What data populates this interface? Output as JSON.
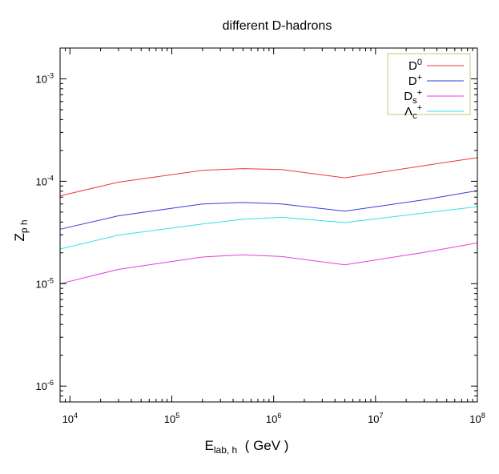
{
  "chart_data": {
    "type": "line",
    "title": "different D-hadrons",
    "xlabel": {
      "main": "E",
      "sub": "lab,  h",
      "unit": "  ( GeV )"
    },
    "ylabel": {
      "main": "Z",
      "sub": "p h"
    },
    "x_scale": "log",
    "y_scale": "log",
    "xlim": [
      8000,
      100000000
    ],
    "ylim": [
      7e-07,
      0.002
    ],
    "grid": false,
    "legend_position": "top-right",
    "x_ticks": [
      {
        "value": 10000,
        "base": "10",
        "exp": "4"
      },
      {
        "value": 100000,
        "base": "10",
        "exp": "5"
      },
      {
        "value": 1000000,
        "base": "10",
        "exp": "6"
      },
      {
        "value": 10000000,
        "base": "10",
        "exp": "7"
      },
      {
        "value": 100000000,
        "base": "10",
        "exp": "8"
      }
    ],
    "y_ticks": [
      {
        "value": 1e-06,
        "base": "10",
        "exp": "-6"
      },
      {
        "value": 1e-05,
        "base": "10",
        "exp": "-5"
      },
      {
        "value": 0.0001,
        "base": "10",
        "exp": "-4"
      },
      {
        "value": 0.001,
        "base": "10",
        "exp": "-3"
      }
    ],
    "x": [
      8000,
      30000,
      200000,
      500000,
      1200000,
      5000000,
      30000000,
      100000000
    ],
    "series": [
      {
        "label_main": "D",
        "label_sup": "0",
        "label_sub": "",
        "color": "#e8393a",
        "values": [
          7.2e-05,
          9.8e-05,
          0.000128,
          0.000133,
          0.00013,
          0.000108,
          0.000142,
          0.00017
        ]
      },
      {
        "label_main": "D",
        "label_sup": "+",
        "label_sub": "",
        "color": "#3a3ae0",
        "values": [
          3.4e-05,
          4.6e-05,
          6e-05,
          6.2e-05,
          6e-05,
          5.1e-05,
          6.6e-05,
          8.1e-05
        ]
      },
      {
        "label_main": "D",
        "label_sup": "+",
        "label_sub": "s",
        "color": "#e040e0",
        "values": [
          1e-05,
          1.38e-05,
          1.82e-05,
          1.91e-05,
          1.84e-05,
          1.53e-05,
          2.02e-05,
          2.5e-05
        ]
      },
      {
        "label_main": "Λ",
        "label_sup": "+",
        "label_sub": "c",
        "color": "#33e0e8",
        "values": [
          2.18e-05,
          2.98e-05,
          3.82e-05,
          4.25e-05,
          4.45e-05,
          3.95e-05,
          4.9e-05,
          5.65e-05
        ]
      }
    ],
    "legend_border_color": "#c8c87a"
  }
}
